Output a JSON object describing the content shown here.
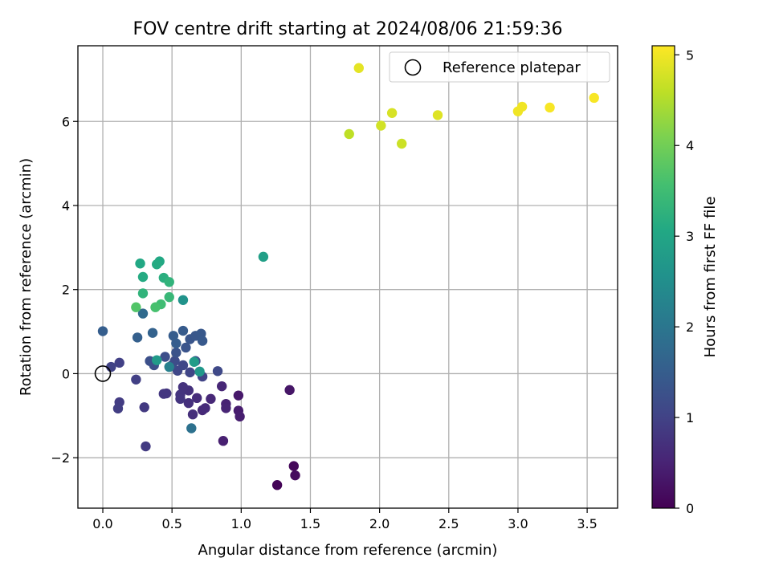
{
  "chart_data": {
    "type": "scatter",
    "title": "FOV centre drift starting at 2024/08/06 21:59:36",
    "xlabel": "Angular distance from reference (arcmin)",
    "ylabel": "Rotation from reference (arcmin)",
    "xlim": [
      -0.18,
      3.72
    ],
    "ylim": [
      -3.2,
      7.8
    ],
    "xticks": [
      0.0,
      0.5,
      1.0,
      1.5,
      2.0,
      2.5,
      3.0,
      3.5
    ],
    "xtick_labels": [
      "0.0",
      "0.5",
      "1.0",
      "1.5",
      "2.0",
      "2.5",
      "3.0",
      "3.5"
    ],
    "yticks": [
      -2,
      0,
      2,
      4,
      6
    ],
    "ytick_labels": [
      "−2",
      "0",
      "2",
      "4",
      "6"
    ],
    "grid": true,
    "legend": {
      "position": "top-right",
      "entries": [
        "Reference platepar"
      ]
    },
    "reference_point": {
      "x": 0,
      "y": 0
    },
    "colorbar": {
      "label": "Hours from first FF file",
      "colormap": "viridis",
      "range": [
        0,
        5.1
      ],
      "ticks": [
        0,
        1,
        2,
        3,
        4,
        5
      ],
      "tick_labels": [
        "0",
        "1",
        "2",
        "3",
        "4",
        "5"
      ]
    },
    "points": [
      {
        "x": 1.26,
        "y": -2.65,
        "c": 0.05
      },
      {
        "x": 1.38,
        "y": -2.2,
        "c": 0.1
      },
      {
        "x": 1.39,
        "y": -2.42,
        "c": 0.15
      },
      {
        "x": 1.35,
        "y": -0.39,
        "c": 0.3
      },
      {
        "x": 0.98,
        "y": -0.52,
        "c": 0.35
      },
      {
        "x": 0.98,
        "y": -0.88,
        "c": 0.4
      },
      {
        "x": 0.99,
        "y": -1.02,
        "c": 0.42
      },
      {
        "x": 0.87,
        "y": -1.6,
        "c": 0.45
      },
      {
        "x": 0.89,
        "y": -0.72,
        "c": 0.5
      },
      {
        "x": 0.89,
        "y": -0.82,
        "c": 0.52
      },
      {
        "x": 0.86,
        "y": -0.3,
        "c": 0.55
      },
      {
        "x": 0.78,
        "y": -0.6,
        "c": 0.58
      },
      {
        "x": 0.72,
        "y": -0.87,
        "c": 0.6
      },
      {
        "x": 0.74,
        "y": -0.82,
        "c": 0.62
      },
      {
        "x": 0.68,
        "y": -0.58,
        "c": 0.65
      },
      {
        "x": 0.65,
        "y": -0.97,
        "c": 0.68
      },
      {
        "x": 0.62,
        "y": -0.7,
        "c": 0.7
      },
      {
        "x": 0.62,
        "y": -0.4,
        "c": 0.72
      },
      {
        "x": 0.58,
        "y": -0.32,
        "c": 0.75
      },
      {
        "x": 0.56,
        "y": -0.5,
        "c": 0.77
      },
      {
        "x": 0.56,
        "y": -0.6,
        "c": 0.78
      },
      {
        "x": 0.46,
        "y": -0.47,
        "c": 0.8
      },
      {
        "x": 0.44,
        "y": -0.48,
        "c": 0.82
      },
      {
        "x": 0.3,
        "y": -0.8,
        "c": 0.85
      },
      {
        "x": 0.31,
        "y": -1.73,
        "c": 0.88
      },
      {
        "x": 0.12,
        "y": -0.68,
        "c": 0.9
      },
      {
        "x": 0.11,
        "y": -0.83,
        "c": 0.92
      },
      {
        "x": 0.24,
        "y": -0.14,
        "c": 0.95
      },
      {
        "x": 0.12,
        "y": 0.26,
        "c": 0.98
      },
      {
        "x": 0.06,
        "y": 0.16,
        "c": 1.0
      },
      {
        "x": 0.72,
        "y": -0.07,
        "c": 1.02
      },
      {
        "x": 0.63,
        "y": 0.03,
        "c": 1.05
      },
      {
        "x": 0.54,
        "y": 0.07,
        "c": 1.08
      },
      {
        "x": 0.58,
        "y": 0.2,
        "c": 1.1
      },
      {
        "x": 0.83,
        "y": 0.06,
        "c": 1.12
      },
      {
        "x": 0.5,
        "y": 0.2,
        "c": 1.15
      },
      {
        "x": 0.52,
        "y": 0.3,
        "c": 1.18
      },
      {
        "x": 0.45,
        "y": 0.4,
        "c": 1.2
      },
      {
        "x": 0.37,
        "y": 0.2,
        "c": 1.22
      },
      {
        "x": 0.34,
        "y": 0.3,
        "c": 1.25
      },
      {
        "x": 0.67,
        "y": 0.3,
        "c": 1.28
      },
      {
        "x": 0.53,
        "y": 0.5,
        "c": 1.3
      },
      {
        "x": 0.6,
        "y": 0.62,
        "c": 1.32
      },
      {
        "x": 0.63,
        "y": 0.82,
        "c": 1.35
      },
      {
        "x": 0.67,
        "y": 0.9,
        "c": 1.38
      },
      {
        "x": 0.71,
        "y": 0.95,
        "c": 1.4
      },
      {
        "x": 0.72,
        "y": 0.78,
        "c": 1.42
      },
      {
        "x": 0.58,
        "y": 1.02,
        "c": 1.45
      },
      {
        "x": 0.51,
        "y": 0.9,
        "c": 1.48
      },
      {
        "x": 0.53,
        "y": 0.72,
        "c": 1.5
      },
      {
        "x": 0.0,
        "y": 1.01,
        "c": 1.52
      },
      {
        "x": 0.25,
        "y": 0.86,
        "c": 1.55
      },
      {
        "x": 0.36,
        "y": 0.97,
        "c": 1.6
      },
      {
        "x": 0.29,
        "y": 1.43,
        "c": 1.75
      },
      {
        "x": 0.64,
        "y": -1.3,
        "c": 1.9
      },
      {
        "x": 0.58,
        "y": 1.75,
        "c": 2.6
      },
      {
        "x": 0.48,
        "y": 0.16,
        "c": 2.2
      },
      {
        "x": 0.7,
        "y": 0.05,
        "c": 2.7
      },
      {
        "x": 0.66,
        "y": 0.28,
        "c": 2.8
      },
      {
        "x": 0.39,
        "y": 0.32,
        "c": 2.75
      },
      {
        "x": 1.16,
        "y": 2.78,
        "c": 2.85
      },
      {
        "x": 0.27,
        "y": 2.62,
        "c": 3.05
      },
      {
        "x": 0.41,
        "y": 2.67,
        "c": 3.05
      },
      {
        "x": 0.39,
        "y": 2.6,
        "c": 3.1
      },
      {
        "x": 0.29,
        "y": 2.3,
        "c": 3.1
      },
      {
        "x": 0.44,
        "y": 2.28,
        "c": 3.2
      },
      {
        "x": 0.48,
        "y": 2.18,
        "c": 3.3
      },
      {
        "x": 0.29,
        "y": 1.91,
        "c": 3.3
      },
      {
        "x": 0.48,
        "y": 1.82,
        "c": 3.4
      },
      {
        "x": 0.42,
        "y": 1.65,
        "c": 3.5
      },
      {
        "x": 0.38,
        "y": 1.58,
        "c": 3.6
      },
      {
        "x": 0.24,
        "y": 1.58,
        "c": 3.7
      },
      {
        "x": 1.78,
        "y": 5.7,
        "c": 4.6
      },
      {
        "x": 2.16,
        "y": 5.47,
        "c": 4.7
      },
      {
        "x": 2.01,
        "y": 5.9,
        "c": 4.75
      },
      {
        "x": 2.09,
        "y": 6.2,
        "c": 4.8
      },
      {
        "x": 2.42,
        "y": 6.15,
        "c": 4.85
      },
      {
        "x": 1.85,
        "y": 7.27,
        "c": 4.9
      },
      {
        "x": 3.0,
        "y": 6.24,
        "c": 5.0
      },
      {
        "x": 3.03,
        "y": 6.35,
        "c": 5.0
      },
      {
        "x": 3.23,
        "y": 6.33,
        "c": 5.05
      },
      {
        "x": 3.55,
        "y": 6.56,
        "c": 5.05
      }
    ]
  }
}
